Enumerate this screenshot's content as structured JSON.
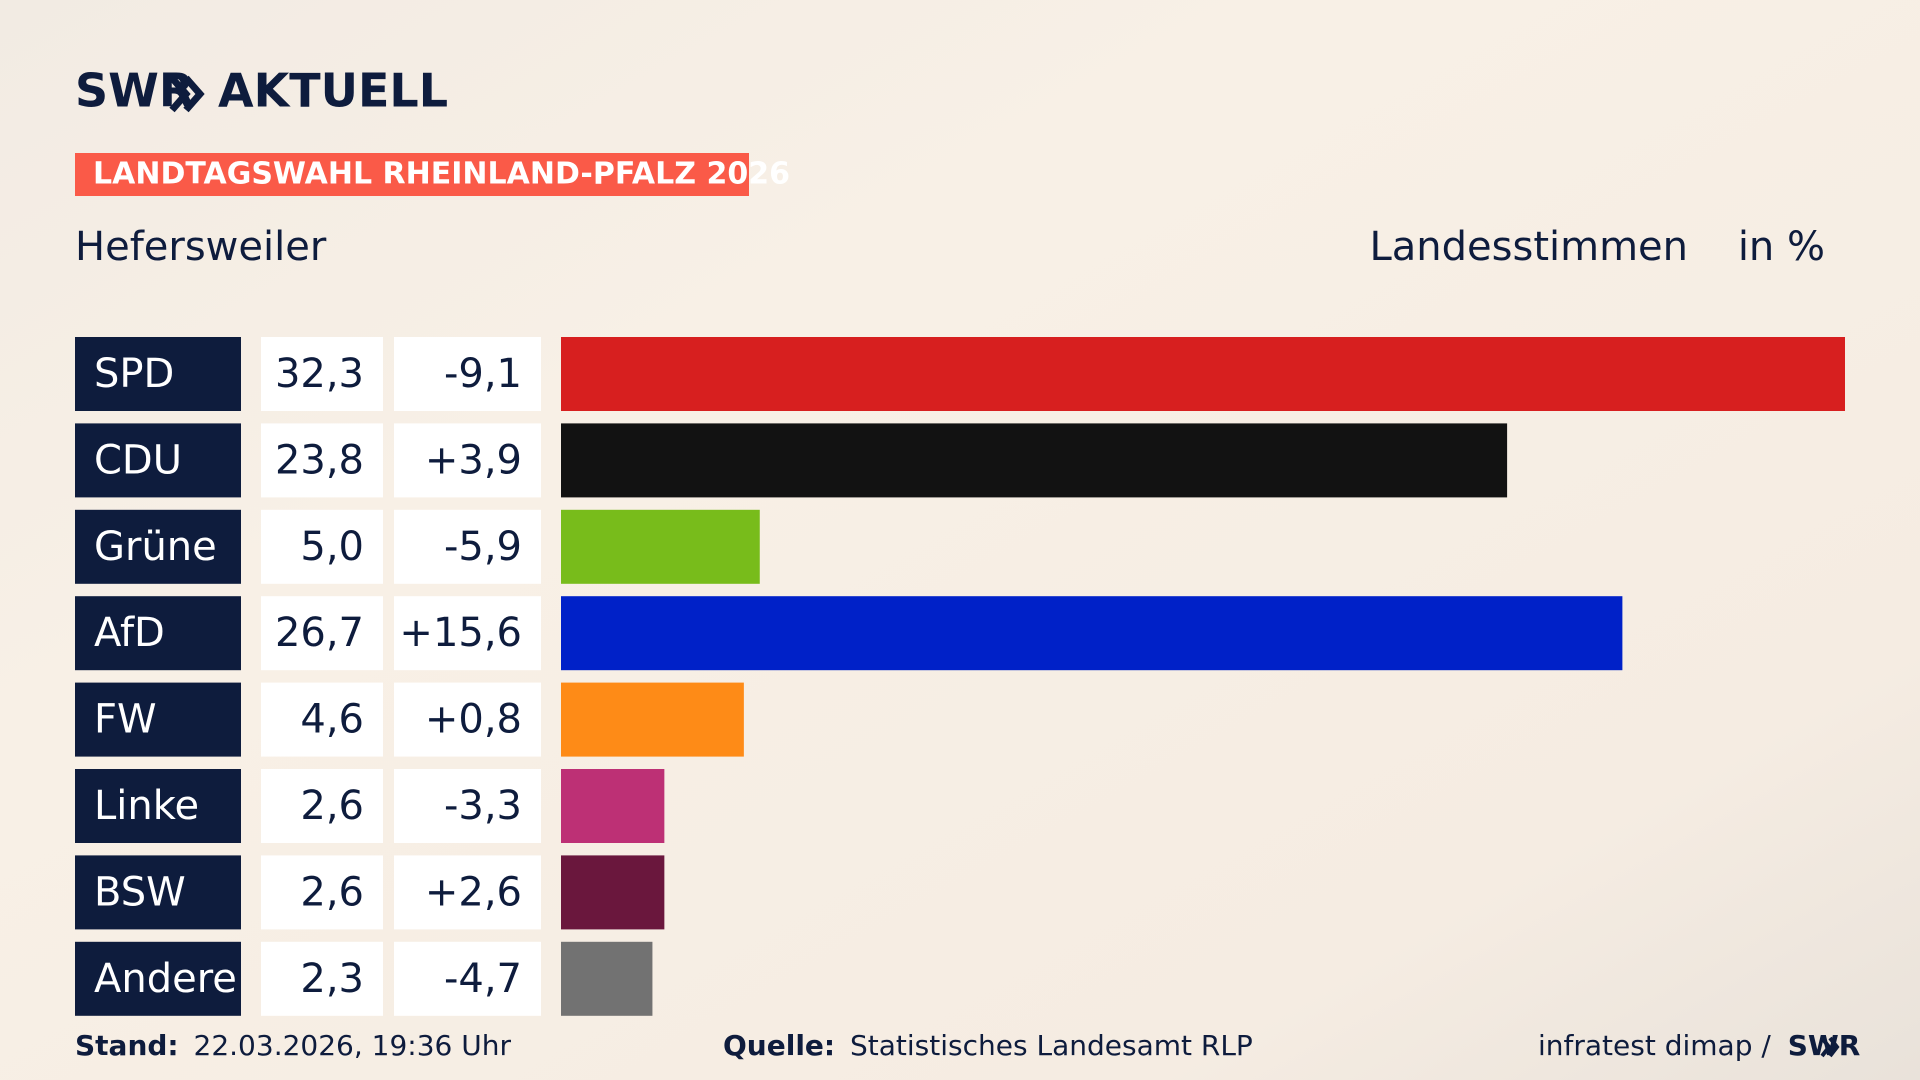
{
  "chart_data": {
    "type": "bar",
    "brand": "SWR",
    "brand_section": "AKTUELL",
    "title": "LANDTAGSWAHL RHEINLAND-PFALZ 2026",
    "subtitle": "Hefersweiler",
    "measure": "Landesstimmen",
    "unit": "in %",
    "categories": [
      "SPD",
      "CDU",
      "Grüne",
      "AfD",
      "FW",
      "Linke",
      "BSW",
      "Andere"
    ],
    "values": [
      32.3,
      23.8,
      5.0,
      26.7,
      4.6,
      2.6,
      2.6,
      2.3
    ],
    "value_labels": [
      "32,3",
      "23,8",
      "5,0",
      "26,7",
      "4,6",
      "2,6",
      "2,6",
      "2,3"
    ],
    "changes": [
      -9.1,
      3.9,
      -5.9,
      15.6,
      0.8,
      -3.3,
      2.6,
      -4.7
    ],
    "change_labels": [
      "-9,1",
      "+3,9",
      "-5,9",
      "+15,6",
      "+0,8",
      "-3,3",
      "+2,6",
      "-4,7"
    ],
    "colors": [
      "#d71f1f",
      "#121212",
      "#78bc1b",
      "#0021c8",
      "#fe8b17",
      "#bd3075",
      "#6a173d",
      "#727272"
    ],
    "footer": {
      "date_label": "Stand:",
      "date": "22.03.2026, 19:36 Uhr",
      "source_label": "Quelle:",
      "source": "Statistisches Landesamt RLP",
      "credit": "infratest dimap /",
      "credit_brand": "SWR"
    }
  }
}
